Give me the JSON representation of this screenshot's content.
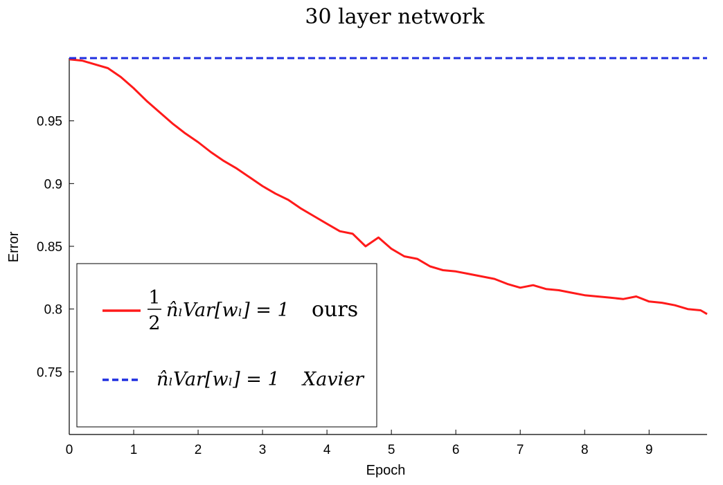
{
  "chart_data": {
    "type": "line",
    "title": "30 layer network",
    "xlabel": "Epoch",
    "ylabel": "Error",
    "xlim": [
      0,
      9.9
    ],
    "ylim": [
      0.7,
      1.0
    ],
    "x_ticks": [
      0,
      1,
      2,
      3,
      4,
      5,
      6,
      7,
      8,
      9
    ],
    "y_ticks": [
      0.75,
      0.8,
      0.85,
      0.9,
      0.95
    ],
    "x_tick_labels": [
      "0",
      "1",
      "2",
      "3",
      "4",
      "5",
      "6",
      "7",
      "8",
      "9"
    ],
    "y_tick_labels": [
      "0.75",
      "0.8",
      "0.85",
      "0.9",
      "0.95"
    ],
    "grid": false,
    "legend_position": "lower-left",
    "series": [
      {
        "name": "ours",
        "label_parts": {
          "fraction_num": "1",
          "fraction_den": "2",
          "expression": "n̂ₗVar[wₗ] = 1",
          "tag": "ours"
        },
        "color": "#ff1a1a",
        "style": "solid",
        "x": [
          0.0,
          0.2,
          0.4,
          0.6,
          0.8,
          1.0,
          1.2,
          1.4,
          1.6,
          1.8,
          2.0,
          2.2,
          2.4,
          2.6,
          2.8,
          3.0,
          3.2,
          3.4,
          3.6,
          3.8,
          4.0,
          4.2,
          4.4,
          4.6,
          4.8,
          5.0,
          5.2,
          5.4,
          5.6,
          5.8,
          6.0,
          6.2,
          6.4,
          6.6,
          6.8,
          7.0,
          7.2,
          7.4,
          7.6,
          7.8,
          8.0,
          8.2,
          8.4,
          8.6,
          8.8,
          9.0,
          9.2,
          9.4,
          9.6,
          9.8,
          9.9
        ],
        "y": [
          0.999,
          0.998,
          0.995,
          0.992,
          0.985,
          0.976,
          0.966,
          0.957,
          0.948,
          0.94,
          0.933,
          0.925,
          0.918,
          0.912,
          0.905,
          0.898,
          0.892,
          0.887,
          0.88,
          0.874,
          0.868,
          0.862,
          0.86,
          0.85,
          0.857,
          0.848,
          0.842,
          0.84,
          0.834,
          0.831,
          0.83,
          0.828,
          0.826,
          0.824,
          0.82,
          0.817,
          0.819,
          0.816,
          0.815,
          0.813,
          0.811,
          0.81,
          0.809,
          0.808,
          0.81,
          0.806,
          0.805,
          0.803,
          0.8,
          0.799,
          0.796
        ]
      },
      {
        "name": "Xavier",
        "label_parts": {
          "expression": "n̂ₗVar[wₗ] = 1",
          "tag": "Xavier"
        },
        "color": "#1f2fe0",
        "style": "dashed",
        "x": [
          0,
          9.9
        ],
        "y": [
          1.0,
          1.0
        ]
      }
    ]
  }
}
